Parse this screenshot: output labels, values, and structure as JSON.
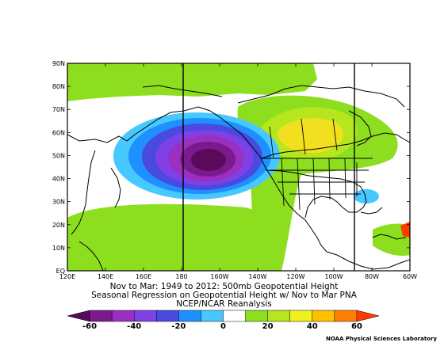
{
  "map": {
    "lat_ticks": [
      "90N",
      "80N",
      "70N",
      "60N",
      "50N",
      "40N",
      "30N",
      "20N",
      "10N",
      "EQ"
    ],
    "lon_ticks": [
      "120E",
      "140E",
      "160E",
      "180",
      "160W",
      "140W",
      "120W",
      "100W",
      "80W",
      "60W"
    ]
  },
  "captions": {
    "line1": "Nov to Mar: 1949 to 2012: 500mb Geopotential Height",
    "line2": "Seasonal Regression on Geopotential Height  w/ Nov to Mar PNA",
    "line3": "NCEP/NCAR Reanalysis"
  },
  "colorbar": {
    "tick_labels": [
      "-60",
      "-40",
      "-20",
      "0",
      "20",
      "40",
      "60"
    ],
    "colors": [
      "#5a0a5a",
      "#7a1a8c",
      "#9b2fc0",
      "#8040e6",
      "#4a4ae0",
      "#1e90ff",
      "#47c8ff",
      "#ffffff",
      "#8ede20",
      "#b6e61e",
      "#f0f020",
      "#ffc000",
      "#ff8000",
      "#ff3c00"
    ]
  },
  "footer": "NOAA Physical Sciences Laboratory"
}
